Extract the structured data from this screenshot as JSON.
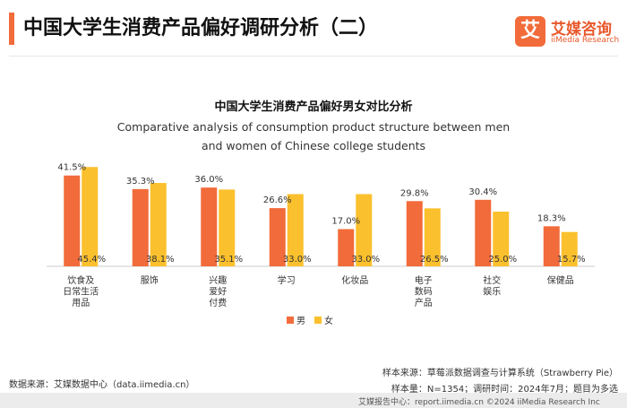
{
  "header": {
    "title": "中国大学生消费产品偏好调研分析（二）",
    "logo_mark": "艾",
    "logo_cn": "艾媒咨询",
    "logo_en": "iiMedia Research"
  },
  "colors": {
    "accent": "#f26b3a",
    "male": "#f26b3a",
    "female": "#fbc02d"
  },
  "chart_data": {
    "type": "bar",
    "title": "中国大学生消费产品偏好男女对比分析",
    "subtitle": "Comparative analysis of consumption product structure between men and women of Chinese college students",
    "categories": [
      "饮食及日常生活用品",
      "服饰",
      "兴趣爱好付费",
      "学习",
      "化妆品",
      "电子数码产品",
      "社交娱乐",
      "保健品"
    ],
    "category_lines": [
      [
        "饮食及",
        "日常生活",
        "用品"
      ],
      [
        "服饰"
      ],
      [
        "兴趣",
        "爱好",
        "付费"
      ],
      [
        "学习"
      ],
      [
        "化妆品"
      ],
      [
        "电子",
        "数码",
        "产品"
      ],
      [
        "社交",
        "娱乐"
      ],
      [
        "保健品"
      ]
    ],
    "series": [
      {
        "name": "男",
        "values": [
          41.5,
          35.3,
          36.0,
          26.6,
          17.0,
          29.8,
          30.4,
          18.3
        ],
        "labels": [
          "41.5%",
          "35.3%",
          "36.0%",
          "26.6%",
          "17.0%",
          "29.8%",
          "30.4%",
          "18.3%"
        ]
      },
      {
        "name": "女",
        "values": [
          45.4,
          38.1,
          35.1,
          33.0,
          33.0,
          26.5,
          25.0,
          15.7
        ],
        "labels": [
          "45.4%",
          "38.1%",
          "35.1%",
          "33.0%",
          "33.0%",
          "26.5%",
          "25.0%",
          "15.7%"
        ]
      }
    ],
    "ylim": [
      0,
      50
    ],
    "xlabel": "",
    "ylabel": "",
    "grid": false,
    "legend_position": "bottom-center"
  },
  "sources": {
    "data_source": "数据来源：艾媒数据中心（data.iimedia.cn）",
    "sample_source": "样本来源：草莓派数据调查与计算系统（Strawberry Pie）",
    "sample_info": "样本量：N=1354；调研时间：2024年7月；题目为多选"
  },
  "footer": {
    "text": "艾媒报告中心：report.iimedia.cn ©2024 iiMedia Research Inc"
  }
}
